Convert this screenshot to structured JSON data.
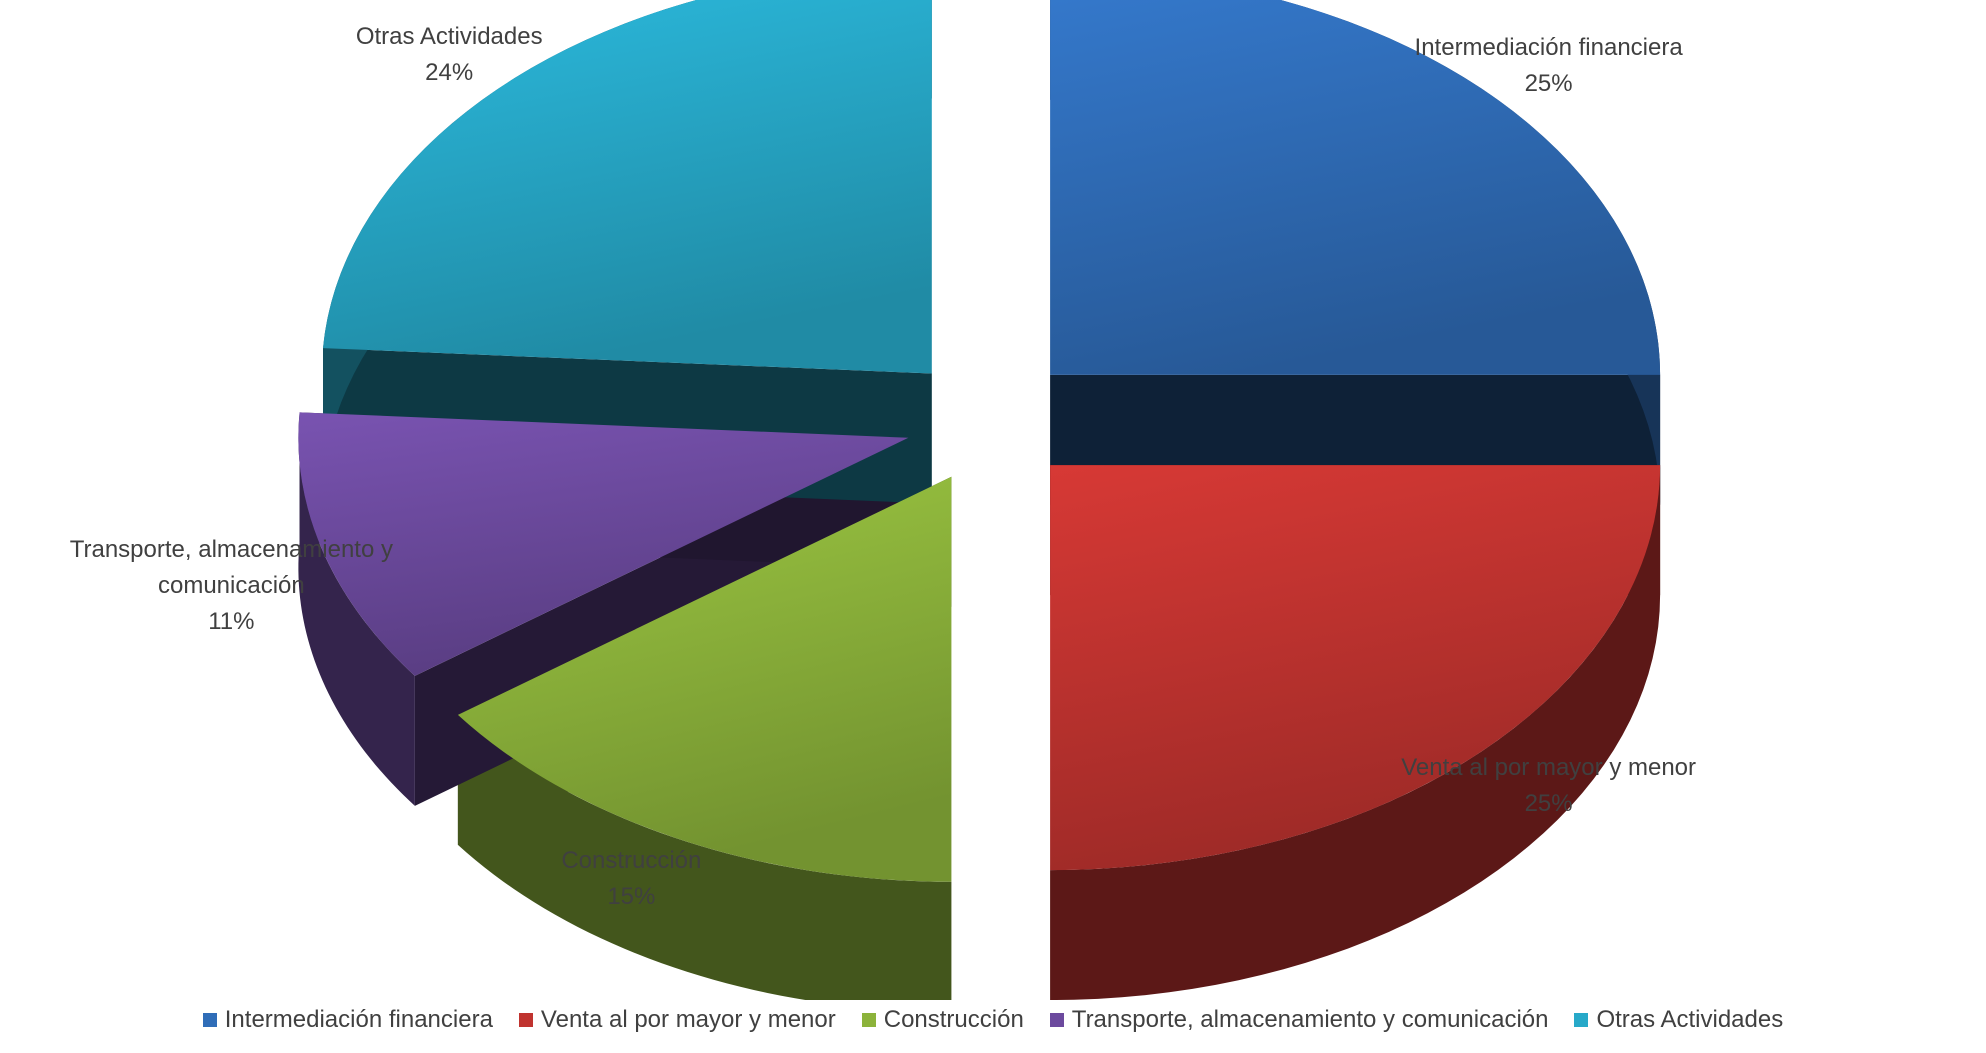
{
  "chart_data": {
    "type": "pie",
    "title": "",
    "categories": [
      "Intermediación financiera",
      "Venta al por mayor y menor",
      "Construcción",
      "Transporte, almacenamiento y comunicación",
      "Otras Actividades"
    ],
    "values": [
      25,
      25,
      15,
      11,
      24
    ],
    "labels": [
      {
        "line1": "Intermediación financiera",
        "line2": "",
        "pct": "25%"
      },
      {
        "line1": "Venta al por mayor y menor",
        "line2": "",
        "pct": "25%"
      },
      {
        "line1": "Construcción",
        "line2": "",
        "pct": "15%"
      },
      {
        "line1": "Transporte, almacenamiento y",
        "line2": "comunicación",
        "pct": "11%"
      },
      {
        "line1": "Otras Actividades",
        "line2": "",
        "pct": "24%"
      }
    ],
    "colors": [
      "#2f6db8",
      "#c0332f",
      "#8cb33b",
      "#6c4a9e",
      "#27a9c9"
    ],
    "legend_position": "bottom",
    "style": "3d-exploded"
  }
}
